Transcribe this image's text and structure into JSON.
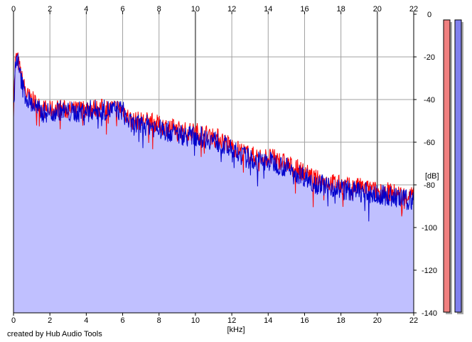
{
  "chart_data": {
    "type": "area",
    "xlabel": "[kHz]",
    "ylabel": "[dB]",
    "xlim": [
      0,
      22
    ],
    "ylim": [
      -140,
      0
    ],
    "x_ticks": [
      0,
      2,
      4,
      6,
      8,
      10,
      12,
      14,
      16,
      18,
      20,
      22
    ],
    "y_ticks": [
      0,
      -20,
      -40,
      -60,
      -80,
      -100,
      -120,
      -140
    ],
    "y_tick_labels": [
      "0",
      "-20",
      "-40",
      "-60",
      "-80",
      "-100",
      "-120",
      "-140"
    ],
    "grid": true,
    "credit": "created by Hub Audio Tools",
    "series": [
      {
        "color": "#ff0000",
        "x": [
          0,
          0.1,
          0.2,
          0.3,
          0.4,
          0.5,
          0.75,
          1,
          1.5,
          2,
          2.5,
          3,
          3.5,
          4,
          4.5,
          5,
          5.5,
          6,
          6.2,
          6.5,
          7,
          7.5,
          8,
          8.5,
          9,
          9.5,
          10,
          10.5,
          11,
          11.5,
          12,
          12.5,
          13,
          13.5,
          14,
          14.5,
          15,
          15.5,
          16,
          16.5,
          17,
          17.5,
          18,
          18.5,
          19,
          19.5,
          20,
          20.5,
          21,
          21.5,
          22
        ],
        "values": [
          -44,
          -22,
          -20,
          -24,
          -28,
          -32,
          -38,
          -40,
          -44,
          -45,
          -44,
          -45,
          -45,
          -44,
          -44,
          -44,
          -44,
          -44,
          -47,
          -50,
          -50,
          -50,
          -52,
          -53,
          -54,
          -55,
          -55,
          -56,
          -57,
          -59,
          -62,
          -64,
          -66,
          -67,
          -67,
          -68,
          -70,
          -72,
          -74,
          -77,
          -78,
          -79,
          -80,
          -81,
          -81,
          -82,
          -83,
          -83,
          -84,
          -85,
          -85
        ]
      },
      {
        "color": "#0000cc",
        "x": [
          0,
          0.1,
          0.2,
          0.3,
          0.4,
          0.5,
          0.75,
          1,
          1.5,
          2,
          2.5,
          3,
          3.5,
          4,
          4.5,
          5,
          5.5,
          6,
          6.2,
          6.5,
          7,
          7.5,
          8,
          8.5,
          9,
          9.5,
          10,
          10.5,
          11,
          11.5,
          12,
          12.5,
          13,
          13.5,
          14,
          14.5,
          15,
          15.5,
          16,
          16.5,
          17,
          17.5,
          18,
          18.5,
          19,
          19.5,
          20,
          20.5,
          21,
          21.5,
          22
        ],
        "values": [
          -46,
          -24,
          -20,
          -26,
          -30,
          -34,
          -40,
          -42,
          -46,
          -46,
          -45,
          -46,
          -46,
          -45,
          -45,
          -45,
          -45,
          -45,
          -49,
          -52,
          -52,
          -52,
          -54,
          -55,
          -56,
          -57,
          -57,
          -58,
          -59,
          -61,
          -64,
          -66,
          -68,
          -69,
          -69,
          -70,
          -72,
          -74,
          -76,
          -79,
          -80,
          -81,
          -82,
          -83,
          -83,
          -84,
          -85,
          -85,
          -86,
          -87,
          -87
        ]
      }
    ],
    "meters": [
      {
        "color": "#f08080",
        "level": 1.0
      },
      {
        "color": "#8080ee",
        "level": 1.0
      }
    ]
  },
  "colors": {
    "fill": "#c0c0ff",
    "grid": "#a0a0a0",
    "major_vline": "#808080",
    "axis": "#000000",
    "meter_shadow": "#a8a8a8"
  }
}
